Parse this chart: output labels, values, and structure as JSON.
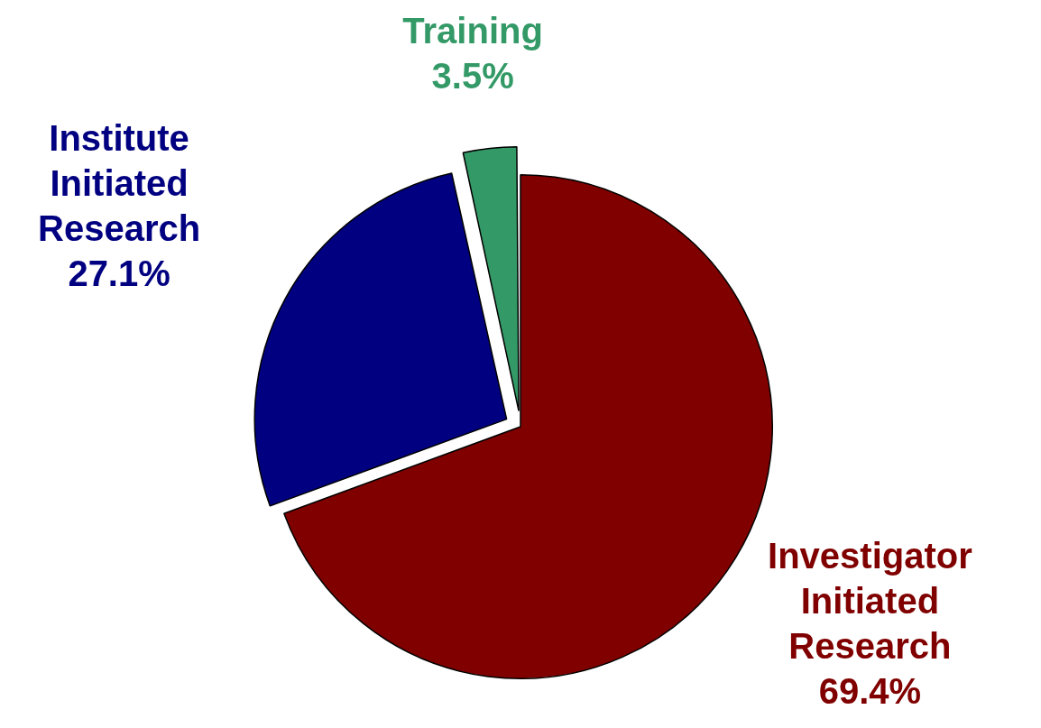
{
  "chart_data": {
    "type": "pie",
    "categories": [
      "Investigator Initiated Research",
      "Institute Initiated Research",
      "Training"
    ],
    "values": [
      69.4,
      27.1,
      3.5
    ],
    "value_labels": [
      "69.4%",
      "27.1%",
      "3.5%"
    ],
    "colors": [
      "#800000",
      "#000080",
      "#339966"
    ]
  }
}
